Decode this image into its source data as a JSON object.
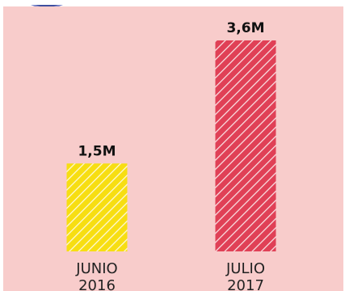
{
  "chart_data": {
    "type": "bar",
    "categories": [
      {
        "line1": "JUNIO",
        "line2": "2016"
      },
      {
        "line1": "JULIO",
        "line2": "2017"
      }
    ],
    "values": [
      1.5,
      3.6
    ],
    "value_labels": [
      "1,5M",
      "3,6M"
    ],
    "unit": "M",
    "ylim": [
      0,
      3.6
    ],
    "grid": false,
    "colors": [
      "#f7de12",
      "#e04056"
    ],
    "stripe_color": "#ffffff",
    "background": "#f8cccb"
  }
}
